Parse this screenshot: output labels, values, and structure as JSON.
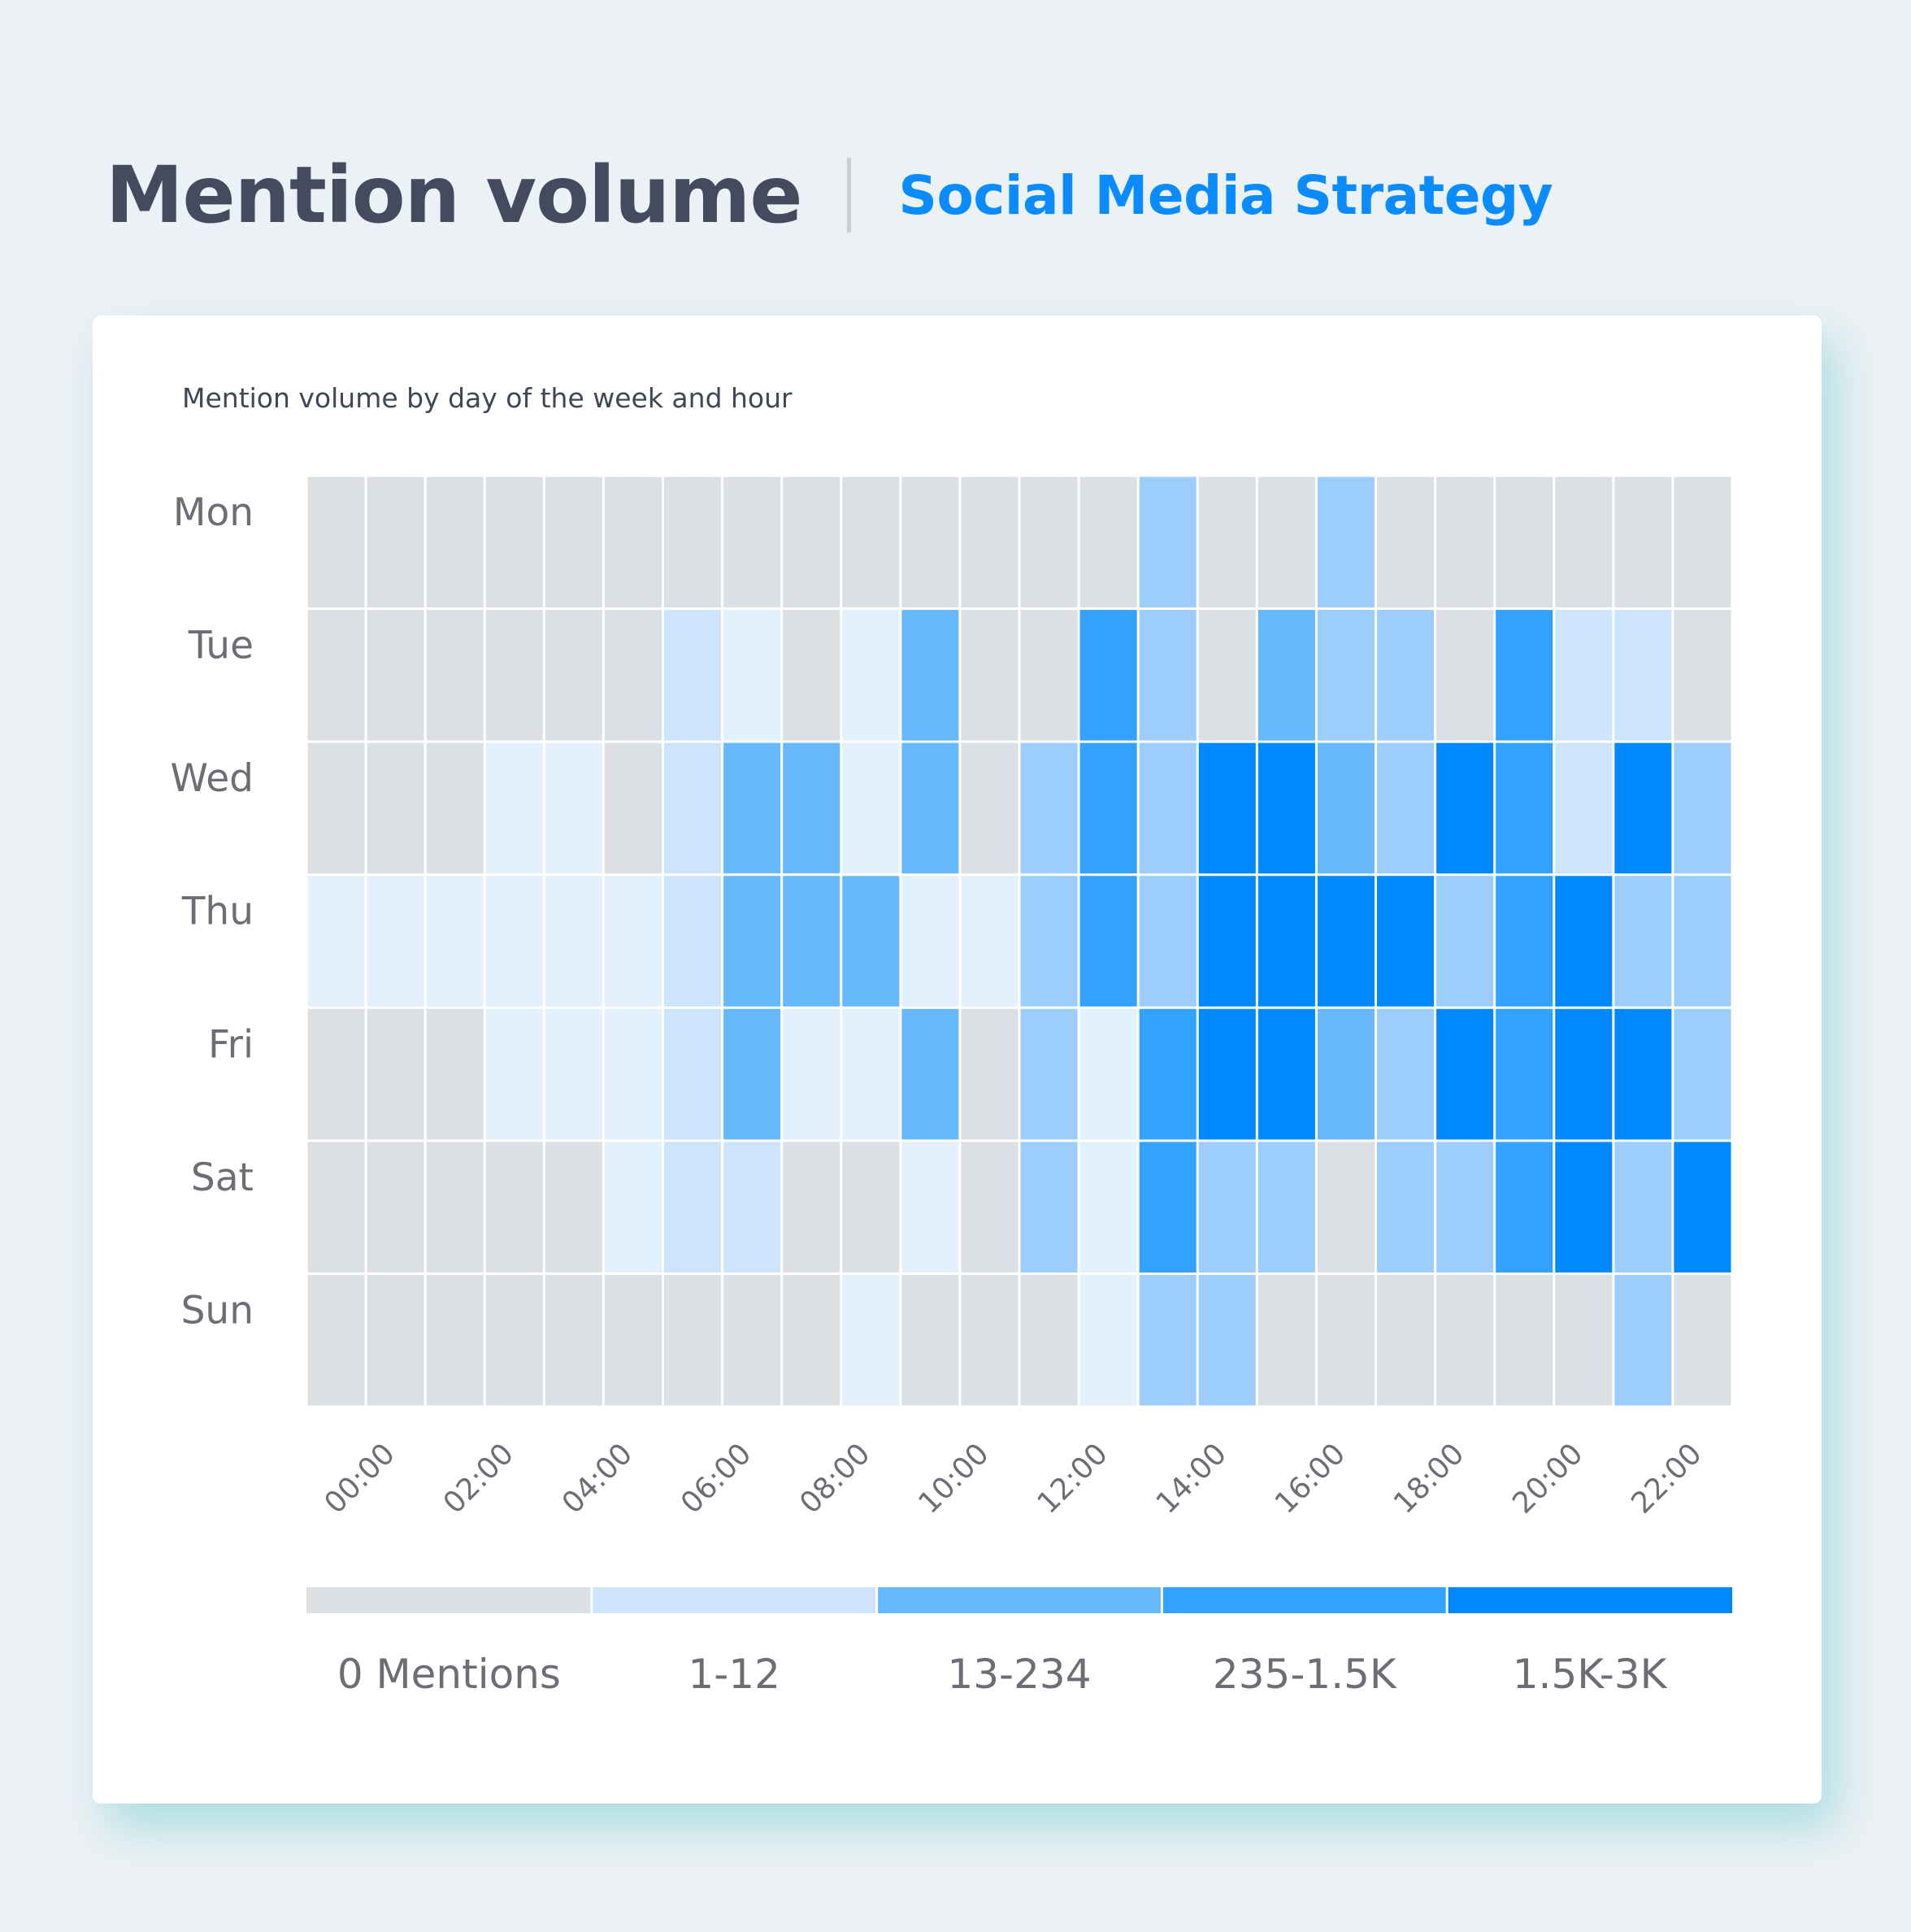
{
  "header": {
    "title": "Mention volume",
    "subtitle": "Social Media Strategy"
  },
  "chart_data": {
    "type": "heatmap",
    "title": "Mention volume by day of the week and hour",
    "y_categories": [
      "Mon",
      "Tue",
      "Wed",
      "Thu",
      "Fri",
      "Sat",
      "Sun"
    ],
    "x_hours": [
      "00:00",
      "01:00",
      "02:00",
      "03:00",
      "04:00",
      "05:00",
      "06:00",
      "07:00",
      "08:00",
      "09:00",
      "10:00",
      "11:00",
      "12:00",
      "13:00",
      "14:00",
      "15:00",
      "16:00",
      "17:00",
      "18:00",
      "19:00",
      "20:00",
      "21:00",
      "22:00",
      "23:00"
    ],
    "x_tick_labels": [
      "00:00",
      "02:00",
      "04:00",
      "06:00",
      "08:00",
      "10:00",
      "12:00",
      "14:00",
      "16:00",
      "18:00",
      "20:00",
      "22:00"
    ],
    "value_encoding": "level index into legend (0 = 0 Mentions, 1 = 1-12 low, 2 = 1-12 high, 3 = 13-234 low, 4 = 13-234 high, 5 = 235-1.5K, 6 = 1.5K-3K)",
    "levels": [
      [
        0,
        0,
        0,
        0,
        0,
        0,
        0,
        0,
        0,
        0,
        0,
        0,
        0,
        0,
        3,
        0,
        0,
        3,
        0,
        0,
        0,
        0,
        0,
        0
      ],
      [
        0,
        0,
        0,
        0,
        0,
        0,
        2,
        1,
        0,
        1,
        4,
        0,
        0,
        5,
        3,
        0,
        4,
        3,
        3,
        0,
        5,
        2,
        2,
        0
      ],
      [
        0,
        0,
        0,
        1,
        1,
        0,
        2,
        4,
        4,
        1,
        4,
        0,
        3,
        5,
        3,
        6,
        6,
        4,
        3,
        6,
        5,
        2,
        6,
        3
      ],
      [
        1,
        1,
        1,
        1,
        1,
        1,
        2,
        4,
        4,
        4,
        1,
        1,
        3,
        5,
        3,
        6,
        6,
        6,
        6,
        3,
        5,
        6,
        3,
        3
      ],
      [
        0,
        0,
        0,
        1,
        1,
        1,
        2,
        4,
        1,
        1,
        4,
        0,
        3,
        1,
        5,
        6,
        6,
        4,
        3,
        6,
        5,
        6,
        6,
        3
      ],
      [
        0,
        0,
        0,
        0,
        0,
        1,
        2,
        2,
        0,
        0,
        1,
        0,
        3,
        1,
        5,
        3,
        3,
        0,
        3,
        3,
        5,
        6,
        3,
        6
      ],
      [
        0,
        0,
        0,
        0,
        0,
        0,
        0,
        0,
        0,
        1,
        0,
        0,
        0,
        1,
        3,
        3,
        0,
        0,
        0,
        0,
        0,
        0,
        3,
        0
      ]
    ],
    "level_colors": [
      "#dcdfe3",
      "#e3f0fd",
      "#cce5fc",
      "#9dcdfd",
      "#68b8fe",
      "#33a1fe",
      "#0089ff"
    ],
    "legend": [
      {
        "label": "0 Mentions",
        "color": "#dcdfe3"
      },
      {
        "label": "1-12",
        "color": "#cce5fc"
      },
      {
        "label": "13-234",
        "color": "#68b8fe"
      },
      {
        "label": "235-1.5K",
        "color": "#33a1fe"
      },
      {
        "label": "1.5K-3K",
        "color": "#0089ff"
      }
    ]
  }
}
